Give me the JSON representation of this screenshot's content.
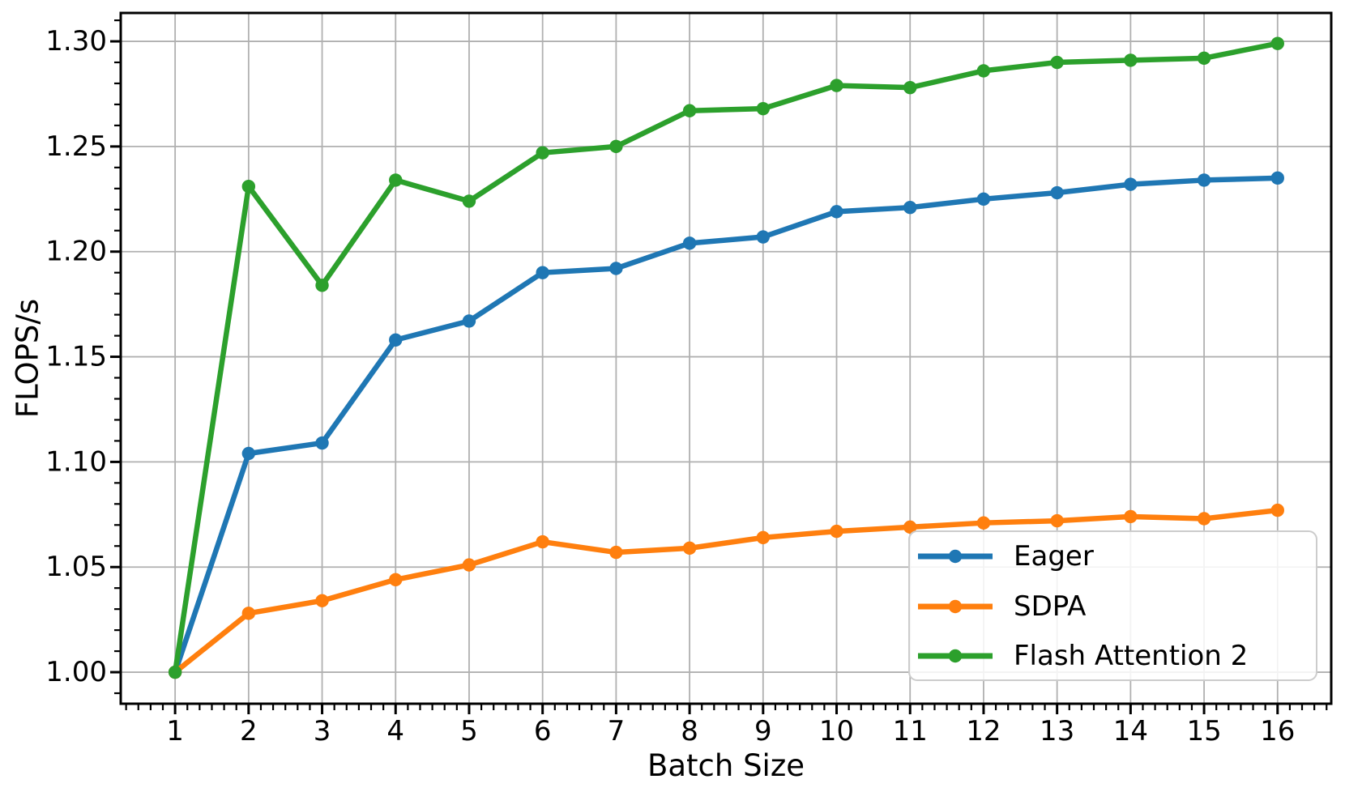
{
  "chart_data": {
    "type": "line",
    "title": "",
    "xlabel": "Batch Size",
    "ylabel": "FLOPS/s",
    "grid": true,
    "legend_position": "lower right",
    "xlim": [
      0.26,
      16.73
    ],
    "ylim": [
      0.985,
      1.3135
    ],
    "x": [
      1,
      2,
      3,
      4,
      5,
      6,
      7,
      8,
      9,
      10,
      11,
      12,
      13,
      14,
      15,
      16
    ],
    "x_tick_labels": [
      "1",
      "2",
      "3",
      "4",
      "5",
      "6",
      "7",
      "8",
      "9",
      "10",
      "11",
      "12",
      "13",
      "14",
      "15",
      "16"
    ],
    "y_ticks": [
      1.0,
      1.05,
      1.1,
      1.15,
      1.2,
      1.25,
      1.3
    ],
    "y_tick_labels": [
      "1.00",
      "1.05",
      "1.10",
      "1.15",
      "1.20",
      "1.25",
      "1.30"
    ],
    "series": [
      {
        "name": "Eager",
        "color": "#1f77b4",
        "values": [
          1.0,
          1.104,
          1.109,
          1.158,
          1.167,
          1.19,
          1.192,
          1.204,
          1.207,
          1.219,
          1.221,
          1.225,
          1.228,
          1.232,
          1.234,
          1.235
        ]
      },
      {
        "name": "SDPA",
        "color": "#ff7f0e",
        "values": [
          1.0,
          1.028,
          1.034,
          1.044,
          1.051,
          1.062,
          1.057,
          1.059,
          1.064,
          1.067,
          1.069,
          1.071,
          1.072,
          1.074,
          1.073,
          1.077
        ]
      },
      {
        "name": "Flash Attention 2",
        "color": "#2ca02c",
        "values": [
          1.0,
          1.231,
          1.184,
          1.234,
          1.224,
          1.247,
          1.25,
          1.267,
          1.268,
          1.279,
          1.278,
          1.286,
          1.29,
          1.291,
          1.292,
          1.299
        ]
      }
    ],
    "colors": {
      "grid": "#b0b0b0",
      "spine": "#000000",
      "legend_border": "#cccccc",
      "legend_fill": "#ffffff"
    }
  }
}
